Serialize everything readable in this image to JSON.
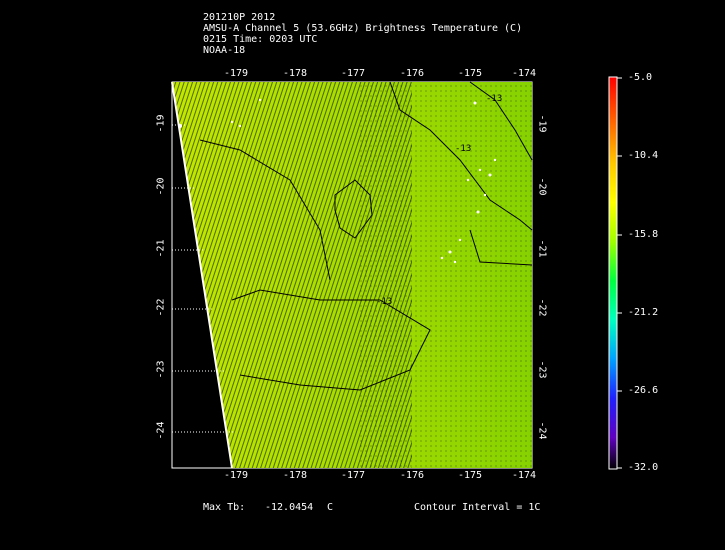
{
  "header": {
    "line1": "201210P 2012",
    "line2": "AMSU-A Channel 5 (53.6GHz) Brightness Temperature (C)",
    "line3": "0215 Time: 0203 UTC",
    "line4": "NOAA-18"
  },
  "map": {
    "lon_labels": [
      "-179",
      "-178",
      "-177",
      "-176",
      "-175",
      "-174"
    ],
    "lat_labels": [
      "-19",
      "-20",
      "-21",
      "-22",
      "-23",
      "-24"
    ],
    "contour_labels": [
      "-13",
      "-13",
      "-13"
    ],
    "colors": {
      "field_left": "#b8e600",
      "field_right": "#8cd400",
      "contour": "#000000"
    }
  },
  "colorbar": {
    "labels": [
      "-5.0",
      "-10.4",
      "-15.8",
      "-21.2",
      "-26.6",
      "-32.0"
    ],
    "range": [
      -32.0,
      -5.0
    ]
  },
  "footer": {
    "max_tb_label": "Max Tb:",
    "max_tb_value": "-12.0454",
    "max_tb_unit": "C",
    "contour_interval": "Contour Interval = 1C"
  }
}
